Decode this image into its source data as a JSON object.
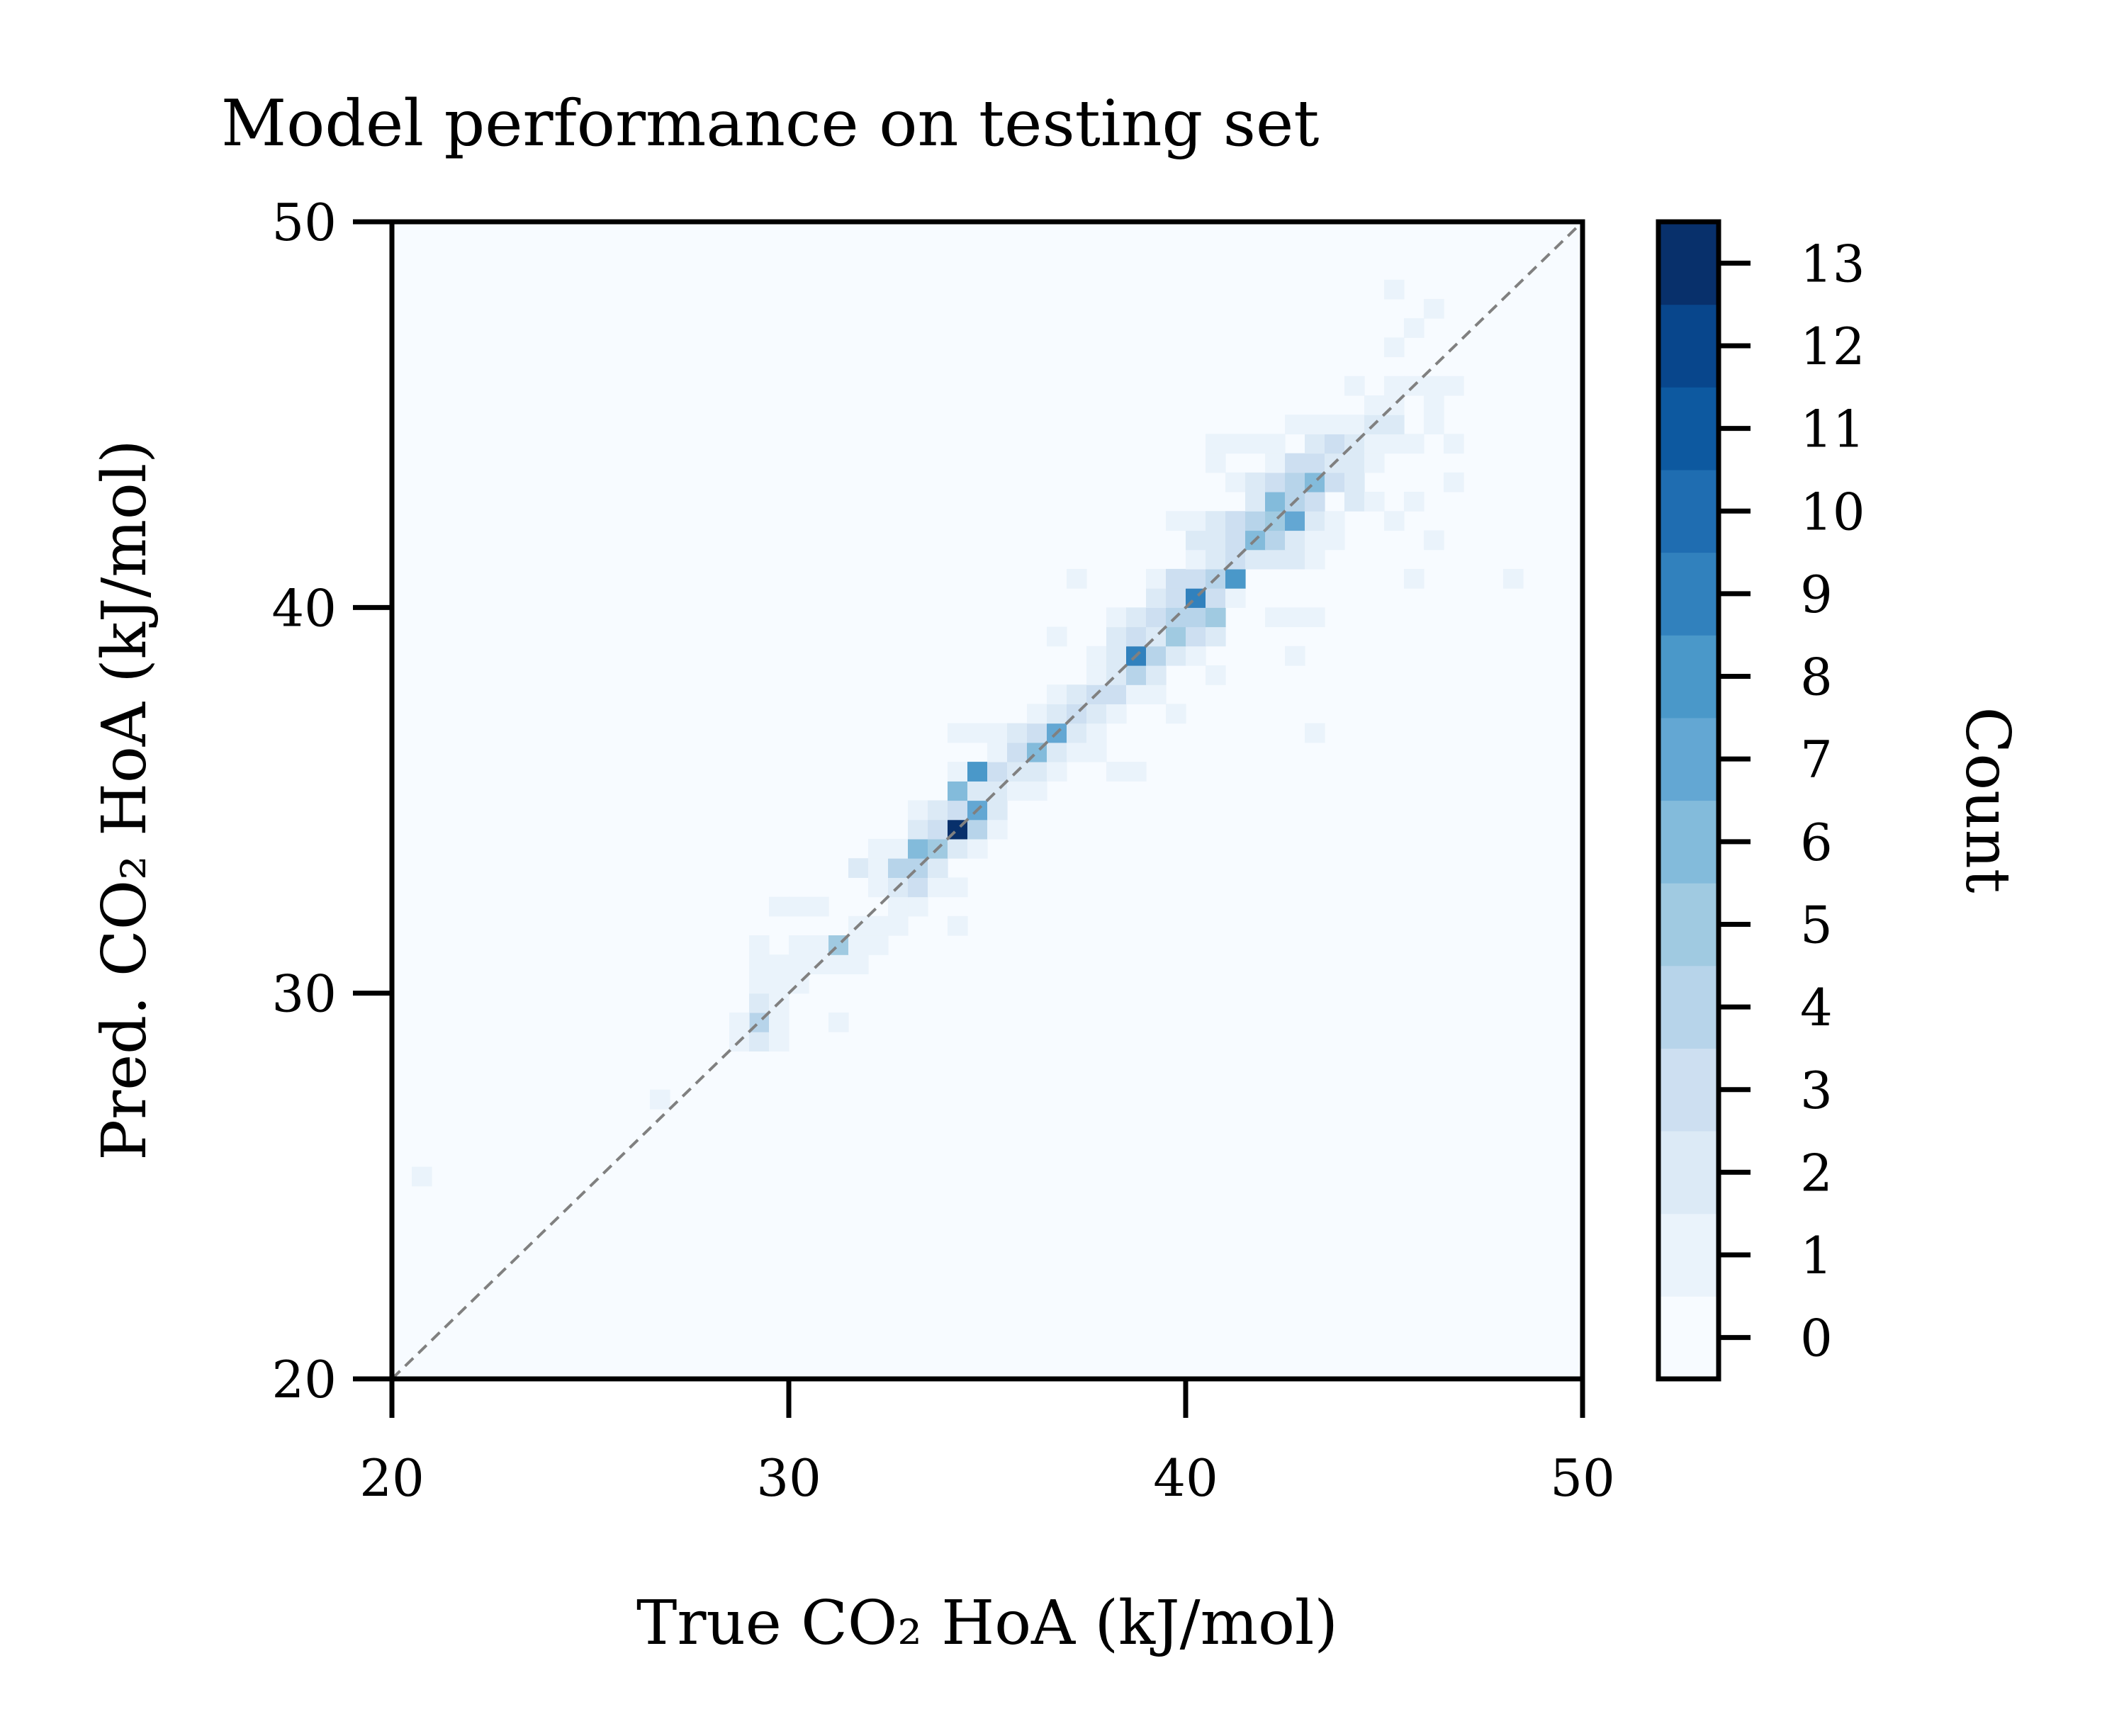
{
  "chart_data": {
    "type": "heatmap",
    "title": "Model performance on testing set",
    "xlabel": "True CO₂ HoA (kJ/mol)",
    "ylabel": "Pred. CO₂ HoA (kJ/mol)",
    "xlim": [
      20,
      50
    ],
    "ylim": [
      20,
      50
    ],
    "xticks": [
      "20",
      "30",
      "40",
      "50"
    ],
    "yticks": [
      "20",
      "30",
      "40",
      "50"
    ],
    "bin_width": 0.5,
    "reference_line": "y = x (dashed)",
    "colorbar": {
      "label": "Count",
      "min": 0,
      "max": 13,
      "ticks": [
        "0",
        "1",
        "2",
        "3",
        "4",
        "5",
        "6",
        "7",
        "8",
        "9",
        "10",
        "11",
        "12",
        "13"
      ],
      "colors": [
        "#f7fbff",
        "#eaf3fb",
        "#dceaf6",
        "#cddff1",
        "#b7d4ea",
        "#a0cae1",
        "#83bbdb",
        "#63a7d3",
        "#4a98c9",
        "#3181bd",
        "#1f6db1",
        "#0d59a0",
        "#08468c",
        "#08306b"
      ]
    },
    "bins": [
      [
        20.5,
        25.0,
        1
      ],
      [
        26.5,
        27.0,
        1
      ],
      [
        28.5,
        28.5,
        1
      ],
      [
        29.0,
        28.5,
        2
      ],
      [
        29.5,
        28.5,
        1
      ],
      [
        29.0,
        29.0,
        4
      ],
      [
        28.5,
        29.0,
        1
      ],
      [
        29.5,
        29.0,
        1
      ],
      [
        29.0,
        29.5,
        2
      ],
      [
        29.5,
        29.5,
        1
      ],
      [
        31.0,
        29.0,
        1
      ],
      [
        29.0,
        30.0,
        1
      ],
      [
        29.5,
        30.0,
        1
      ],
      [
        30.0,
        30.0,
        1
      ],
      [
        29.0,
        30.5,
        1
      ],
      [
        29.5,
        30.5,
        1
      ],
      [
        30.0,
        30.5,
        1
      ],
      [
        30.5,
        30.5,
        1
      ],
      [
        31.0,
        30.5,
        1
      ],
      [
        31.5,
        30.5,
        1
      ],
      [
        29.0,
        31.0,
        1
      ],
      [
        30.0,
        31.0,
        1
      ],
      [
        30.5,
        31.0,
        1
      ],
      [
        31.0,
        31.0,
        5
      ],
      [
        31.5,
        31.0,
        1
      ],
      [
        32.0,
        31.0,
        1
      ],
      [
        31.5,
        31.5,
        1
      ],
      [
        32.0,
        31.5,
        1
      ],
      [
        32.5,
        31.5,
        1
      ],
      [
        29.5,
        32.0,
        1
      ],
      [
        30.0,
        32.0,
        1
      ],
      [
        30.5,
        32.0,
        1
      ],
      [
        33.0,
        32.0,
        1
      ],
      [
        32.5,
        32.0,
        1
      ],
      [
        34.0,
        31.5,
        1
      ],
      [
        32.0,
        32.5,
        1
      ],
      [
        32.5,
        32.5,
        2
      ],
      [
        33.0,
        32.5,
        3
      ],
      [
        33.5,
        32.5,
        1
      ],
      [
        34.0,
        32.5,
        1
      ],
      [
        31.5,
        33.0,
        2
      ],
      [
        32.0,
        33.0,
        1
      ],
      [
        32.5,
        33.0,
        4
      ],
      [
        33.0,
        33.0,
        4
      ],
      [
        33.5,
        33.0,
        2
      ],
      [
        32.0,
        33.5,
        1
      ],
      [
        32.5,
        33.5,
        1
      ],
      [
        33.0,
        33.5,
        6
      ],
      [
        33.5,
        33.5,
        5
      ],
      [
        34.0,
        33.5,
        2
      ],
      [
        34.5,
        33.5,
        1
      ],
      [
        33.0,
        34.0,
        2
      ],
      [
        33.5,
        34.0,
        3
      ],
      [
        34.0,
        34.0,
        13
      ],
      [
        34.5,
        34.0,
        4
      ],
      [
        35.0,
        34.0,
        1
      ],
      [
        33.0,
        34.5,
        1
      ],
      [
        33.5,
        34.5,
        2
      ],
      [
        34.0,
        34.5,
        3
      ],
      [
        34.5,
        34.5,
        7
      ],
      [
        35.0,
        34.5,
        2
      ],
      [
        34.0,
        35.0,
        6
      ],
      [
        34.5,
        35.0,
        2
      ],
      [
        35.0,
        35.0,
        2
      ],
      [
        35.5,
        35.0,
        1
      ],
      [
        36.0,
        35.0,
        1
      ],
      [
        34.0,
        35.5,
        1
      ],
      [
        34.5,
        35.5,
        8
      ],
      [
        35.0,
        35.5,
        3
      ],
      [
        35.5,
        35.5,
        2
      ],
      [
        36.0,
        35.5,
        2
      ],
      [
        36.5,
        35.5,
        1
      ],
      [
        38.0,
        35.5,
        1
      ],
      [
        38.5,
        35.5,
        1
      ],
      [
        35.0,
        36.0,
        1
      ],
      [
        35.5,
        36.0,
        3
      ],
      [
        36.0,
        36.0,
        6
      ],
      [
        36.5,
        36.0,
        2
      ],
      [
        37.0,
        36.0,
        1
      ],
      [
        37.5,
        36.0,
        1
      ],
      [
        43.0,
        36.5,
        1
      ],
      [
        34.0,
        36.5,
        1
      ],
      [
        34.5,
        36.5,
        1
      ],
      [
        35.0,
        36.5,
        1
      ],
      [
        35.5,
        36.5,
        2
      ],
      [
        36.0,
        36.5,
        3
      ],
      [
        36.5,
        36.5,
        7
      ],
      [
        37.0,
        36.5,
        2
      ],
      [
        37.5,
        36.5,
        1
      ],
      [
        36.0,
        37.0,
        1
      ],
      [
        36.5,
        37.0,
        2
      ],
      [
        37.0,
        37.0,
        3
      ],
      [
        37.5,
        37.0,
        2
      ],
      [
        38.0,
        37.0,
        1
      ],
      [
        39.5,
        37.0,
        1
      ],
      [
        36.5,
        37.5,
        1
      ],
      [
        37.0,
        37.5,
        2
      ],
      [
        37.5,
        37.5,
        3
      ],
      [
        38.0,
        37.5,
        3
      ],
      [
        38.5,
        37.5,
        1
      ],
      [
        39.0,
        37.5,
        1
      ],
      [
        37.5,
        38.0,
        1
      ],
      [
        38.0,
        38.0,
        2
      ],
      [
        38.5,
        38.0,
        4
      ],
      [
        39.0,
        38.0,
        2
      ],
      [
        40.5,
        38.0,
        1
      ],
      [
        42.5,
        38.5,
        1
      ],
      [
        37.5,
        38.5,
        1
      ],
      [
        38.0,
        38.5,
        2
      ],
      [
        38.5,
        38.5,
        9
      ],
      [
        39.0,
        38.5,
        4
      ],
      [
        39.5,
        38.5,
        2
      ],
      [
        40.0,
        38.5,
        1
      ],
      [
        36.5,
        39.0,
        1
      ],
      [
        38.0,
        39.0,
        2
      ],
      [
        38.5,
        39.0,
        3
      ],
      [
        39.0,
        39.0,
        2
      ],
      [
        39.5,
        39.0,
        5
      ],
      [
        40.0,
        39.0,
        3
      ],
      [
        40.5,
        39.0,
        2
      ],
      [
        38.0,
        39.5,
        1
      ],
      [
        38.5,
        39.5,
        2
      ],
      [
        39.0,
        39.5,
        3
      ],
      [
        39.5,
        39.5,
        4
      ],
      [
        40.0,
        39.5,
        4
      ],
      [
        40.5,
        39.5,
        5
      ],
      [
        42.0,
        39.5,
        1
      ],
      [
        42.5,
        39.5,
        1
      ],
      [
        43.0,
        39.5,
        1
      ],
      [
        39.0,
        40.0,
        2
      ],
      [
        39.5,
        40.0,
        3
      ],
      [
        40.0,
        40.0,
        9
      ],
      [
        40.5,
        40.0,
        3
      ],
      [
        41.0,
        40.0,
        1
      ],
      [
        37.0,
        40.5,
        1
      ],
      [
        39.0,
        40.5,
        1
      ],
      [
        39.5,
        40.5,
        3
      ],
      [
        40.0,
        40.5,
        3
      ],
      [
        40.5,
        40.5,
        4
      ],
      [
        41.0,
        40.5,
        8
      ],
      [
        45.5,
        40.5,
        1
      ],
      [
        48.0,
        40.5,
        1
      ],
      [
        40.0,
        41.0,
        1
      ],
      [
        40.5,
        41.0,
        2
      ],
      [
        41.0,
        41.0,
        3
      ],
      [
        41.5,
        41.0,
        2
      ],
      [
        42.0,
        41.0,
        2
      ],
      [
        42.5,
        41.0,
        2
      ],
      [
        43.0,
        41.0,
        1
      ],
      [
        40.0,
        41.5,
        2
      ],
      [
        40.5,
        41.5,
        2
      ],
      [
        41.0,
        41.5,
        3
      ],
      [
        41.5,
        41.5,
        6
      ],
      [
        42.0,
        41.5,
        4
      ],
      [
        42.5,
        41.5,
        2
      ],
      [
        43.0,
        41.5,
        1
      ],
      [
        43.5,
        41.5,
        1
      ],
      [
        46.0,
        41.5,
        1
      ],
      [
        39.5,
        42.0,
        1
      ],
      [
        40.0,
        42.0,
        1
      ],
      [
        40.5,
        42.0,
        2
      ],
      [
        41.0,
        42.0,
        3
      ],
      [
        41.5,
        42.0,
        4
      ],
      [
        42.0,
        42.0,
        5
      ],
      [
        42.5,
        42.0,
        7
      ],
      [
        43.0,
        42.0,
        2
      ],
      [
        43.5,
        42.0,
        1
      ],
      [
        45.0,
        42.0,
        1
      ],
      [
        41.5,
        42.5,
        2
      ],
      [
        42.0,
        42.5,
        6
      ],
      [
        42.5,
        42.5,
        4
      ],
      [
        43.0,
        42.5,
        3
      ],
      [
        44.0,
        42.5,
        2
      ],
      [
        44.5,
        42.5,
        1
      ],
      [
        45.5,
        42.5,
        1
      ],
      [
        41.0,
        43.0,
        1
      ],
      [
        41.5,
        43.0,
        2
      ],
      [
        42.0,
        43.0,
        3
      ],
      [
        42.5,
        43.0,
        4
      ],
      [
        43.0,
        43.0,
        6
      ],
      [
        43.5,
        43.0,
        3
      ],
      [
        44.0,
        43.0,
        2
      ],
      [
        46.5,
        43.0,
        1
      ],
      [
        40.5,
        43.5,
        1
      ],
      [
        42.0,
        43.5,
        1
      ],
      [
        42.5,
        43.5,
        3
      ],
      [
        43.0,
        43.5,
        3
      ],
      [
        43.5,
        43.5,
        2
      ],
      [
        44.0,
        43.5,
        2
      ],
      [
        44.5,
        43.5,
        1
      ],
      [
        40.5,
        44.0,
        1
      ],
      [
        41.0,
        44.0,
        1
      ],
      [
        41.5,
        44.0,
        1
      ],
      [
        42.0,
        44.0,
        1
      ],
      [
        43.0,
        44.0,
        2
      ],
      [
        43.5,
        44.0,
        3
      ],
      [
        44.0,
        44.0,
        2
      ],
      [
        44.5,
        44.0,
        1
      ],
      [
        45.0,
        44.0,
        1
      ],
      [
        45.5,
        44.0,
        1
      ],
      [
        46.5,
        44.0,
        1
      ],
      [
        42.5,
        44.5,
        1
      ],
      [
        43.0,
        44.5,
        1
      ],
      [
        43.5,
        44.5,
        1
      ],
      [
        44.0,
        44.5,
        1
      ],
      [
        44.5,
        44.5,
        2
      ],
      [
        45.0,
        44.5,
        2
      ],
      [
        46.0,
        44.5,
        1
      ],
      [
        44.5,
        45.0,
        1
      ],
      [
        45.0,
        45.0,
        1
      ],
      [
        46.0,
        45.0,
        1
      ],
      [
        44.0,
        45.5,
        1
      ],
      [
        45.0,
        45.5,
        1
      ],
      [
        45.5,
        45.5,
        1
      ],
      [
        46.0,
        45.5,
        1
      ],
      [
        46.5,
        45.5,
        1
      ],
      [
        45.0,
        46.5,
        1
      ],
      [
        45.5,
        47.0,
        1
      ],
      [
        46.0,
        47.5,
        1
      ],
      [
        45.0,
        48.0,
        1
      ]
    ]
  }
}
